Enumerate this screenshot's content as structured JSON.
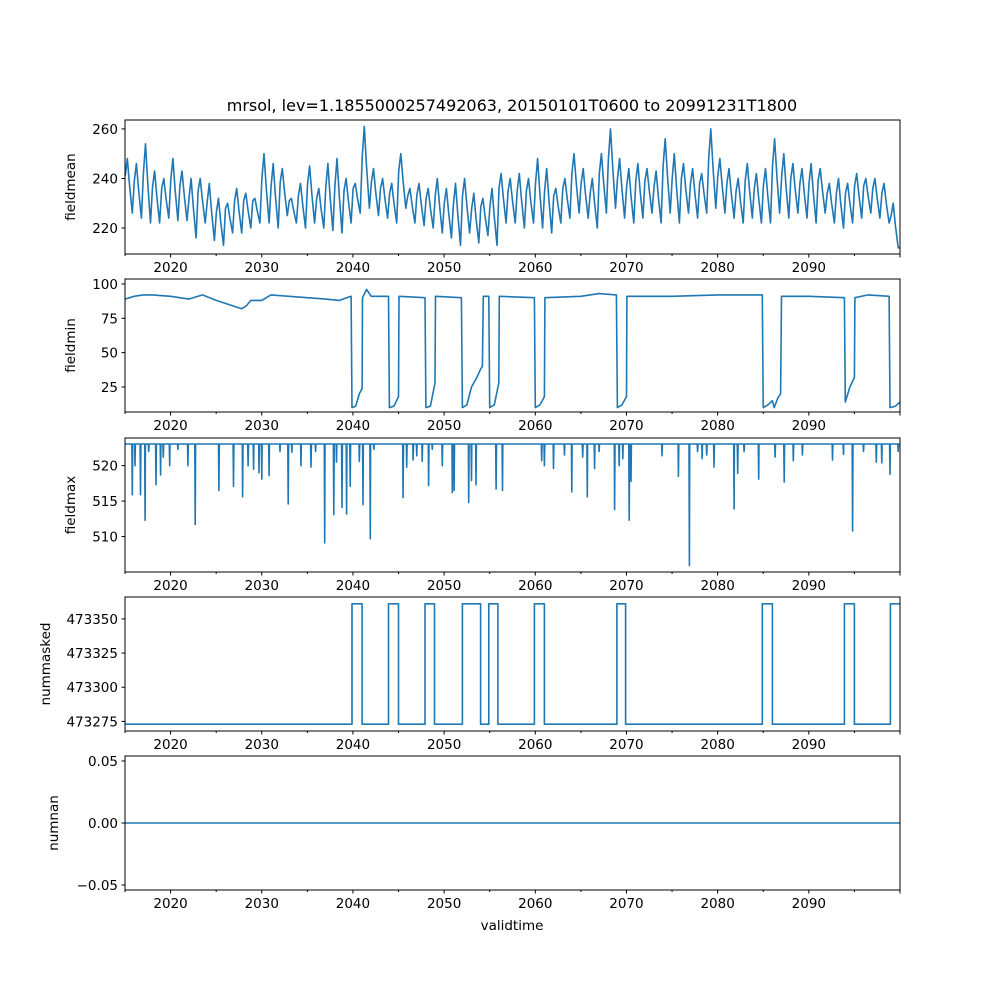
{
  "figure": {
    "title": "mrsol, lev=1.1855000257492063, 20150101T0600 to 20991231T1800",
    "xlabel": "validtime",
    "line_color": "#1f77b4"
  },
  "chart_data": [
    {
      "type": "line",
      "ylabel": "fieldmean",
      "xlim": [
        2015,
        2100
      ],
      "ylim": [
        209.5,
        263.6
      ],
      "xticks": [
        "2020",
        "2030",
        "2040",
        "2050",
        "2060",
        "2070",
        "2080",
        "2090"
      ],
      "yticks": [
        "220",
        "240",
        "260"
      ],
      "series": {
        "x_start_year": 2015,
        "annual_peaks": [
          248,
          246,
          254,
          243,
          240,
          248,
          243,
          240,
          240,
          238,
          232,
          230,
          236,
          234,
          232,
          250,
          246,
          244,
          232,
          238,
          245,
          236,
          246,
          248,
          240,
          238,
          261,
          244,
          240,
          238,
          250,
          236,
          238,
          236,
          240,
          236,
          238,
          240,
          234,
          232,
          236,
          242,
          240,
          242,
          240,
          248,
          244,
          236,
          240,
          250,
          244,
          240,
          250,
          260,
          248,
          244,
          246,
          244,
          243,
          256,
          250,
          246,
          244,
          242,
          260,
          248,
          244,
          240,
          246,
          242,
          244,
          256,
          250,
          246,
          244,
          246,
          244,
          238,
          240,
          238,
          242,
          240,
          240,
          238,
          230
        ],
        "annual_troughs": [
          226,
          224,
          222,
          222,
          224,
          223,
          223,
          216,
          222,
          215,
          213,
          218,
          218,
          220,
          222,
          222,
          220,
          225,
          222,
          220,
          222,
          220,
          219,
          218,
          222,
          226,
          228,
          225,
          224,
          222,
          228,
          222,
          221,
          220,
          218,
          216,
          213,
          218,
          214,
          217,
          213,
          222,
          222,
          220,
          222,
          220,
          218,
          222,
          224,
          226,
          224,
          220,
          226,
          228,
          224,
          222,
          224,
          226,
          222,
          226,
          222,
          226,
          224,
          226,
          228,
          226,
          224,
          222,
          224,
          222,
          222,
          226,
          224,
          226,
          224,
          222,
          226,
          222,
          220,
          222,
          224,
          226,
          224,
          222,
          212
        ]
      }
    },
    {
      "type": "line",
      "ylabel": "fieldmin",
      "xlim": [
        2015,
        2100
      ],
      "ylim": [
        6.8,
        103.6
      ],
      "xticks": [
        "2020",
        "2030",
        "2040",
        "2050",
        "2060",
        "2070",
        "2080",
        "2090"
      ],
      "yticks": [
        "25",
        "50",
        "75",
        "100"
      ],
      "points": [
        [
          2015,
          89
        ],
        [
          2016,
          91
        ],
        [
          2017,
          92
        ],
        [
          2018,
          92
        ],
        [
          2020,
          91
        ],
        [
          2022,
          89
        ],
        [
          2023.5,
          92
        ],
        [
          2025,
          88
        ],
        [
          2027.8,
          82
        ],
        [
          2028.3,
          84
        ],
        [
          2028.8,
          88
        ],
        [
          2030,
          88
        ],
        [
          2031,
          92
        ],
        [
          2033,
          91
        ],
        [
          2035,
          90
        ],
        [
          2037,
          89
        ],
        [
          2038.5,
          88
        ],
        [
          2039.8,
          91
        ],
        [
          2039.9,
          10
        ],
        [
          2040.3,
          11
        ],
        [
          2040.7,
          20
        ],
        [
          2041,
          24
        ],
        [
          2041.05,
          90
        ],
        [
          2041.5,
          96
        ],
        [
          2042,
          91
        ],
        [
          2043.9,
          91
        ],
        [
          2044,
          10
        ],
        [
          2044.5,
          11
        ],
        [
          2045,
          18
        ],
        [
          2045.05,
          91
        ],
        [
          2047.9,
          90
        ],
        [
          2048,
          10
        ],
        [
          2048.5,
          11
        ],
        [
          2049,
          28
        ],
        [
          2049.05,
          91
        ],
        [
          2051.9,
          90
        ],
        [
          2052,
          10
        ],
        [
          2052.5,
          12
        ],
        [
          2053,
          25
        ],
        [
          2053.6,
          32
        ],
        [
          2054,
          38
        ],
        [
          2054.2,
          40
        ],
        [
          2054.3,
          91
        ],
        [
          2054.9,
          91
        ],
        [
          2055,
          10
        ],
        [
          2055.5,
          12
        ],
        [
          2056,
          28
        ],
        [
          2056.05,
          91
        ],
        [
          2059.9,
          90
        ],
        [
          2060,
          10
        ],
        [
          2060.5,
          12
        ],
        [
          2061,
          18
        ],
        [
          2061.05,
          90
        ],
        [
          2065,
          91
        ],
        [
          2067,
          93
        ],
        [
          2068.9,
          92
        ],
        [
          2069,
          10
        ],
        [
          2069.5,
          12
        ],
        [
          2070,
          18
        ],
        [
          2070.05,
          91
        ],
        [
          2075,
          91
        ],
        [
          2080,
          92
        ],
        [
          2084.9,
          92
        ],
        [
          2085,
          10
        ],
        [
          2085.5,
          12
        ],
        [
          2086,
          15
        ],
        [
          2086.2,
          10
        ],
        [
          2086.6,
          17
        ],
        [
          2086.9,
          20
        ],
        [
          2087,
          91
        ],
        [
          2090,
          91
        ],
        [
          2093.9,
          90
        ],
        [
          2094,
          14
        ],
        [
          2094.5,
          25
        ],
        [
          2095,
          32
        ],
        [
          2095.05,
          90
        ],
        [
          2096.5,
          92
        ],
        [
          2098.8,
          91
        ],
        [
          2098.9,
          10
        ],
        [
          2099.5,
          11
        ],
        [
          2100,
          14
        ]
      ]
    },
    {
      "type": "line",
      "ylabel": "fieldmax",
      "xlim": [
        2015,
        2100
      ],
      "ylim": [
        505.0,
        523.9
      ],
      "xticks": [
        "2020",
        "2030",
        "2040",
        "2050",
        "2060",
        "2070",
        "2080",
        "2090"
      ],
      "yticks": [
        "510",
        "515",
        "520"
      ],
      "baseline": 523.05,
      "dips": [
        [
          2015.8,
          515.9
        ],
        [
          2016.1,
          520
        ],
        [
          2016.7,
          515.9
        ],
        [
          2017.2,
          512.3
        ],
        [
          2017.6,
          522
        ],
        [
          2018.4,
          517.3
        ],
        [
          2018.9,
          518.7
        ],
        [
          2019.2,
          521.2
        ],
        [
          2019.9,
          520
        ],
        [
          2020.8,
          522.3
        ],
        [
          2021.9,
          520
        ],
        [
          2022.7,
          511.7
        ],
        [
          2025.3,
          516.5
        ],
        [
          2026.9,
          517.1
        ],
        [
          2027.9,
          515.6
        ],
        [
          2028.5,
          520
        ],
        [
          2029.1,
          519.5
        ],
        [
          2029.7,
          519
        ],
        [
          2030.0,
          518.1
        ],
        [
          2030.8,
          518.6
        ],
        [
          2032,
          522
        ],
        [
          2032.9,
          514.6
        ],
        [
          2033.3,
          521.9
        ],
        [
          2034.3,
          520
        ],
        [
          2035.4,
          519.8
        ],
        [
          2035.9,
          522
        ],
        [
          2036.9,
          509.1
        ],
        [
          2037.9,
          513.1
        ],
        [
          2038.2,
          520.5
        ],
        [
          2038.8,
          514.1
        ],
        [
          2039.3,
          513.2
        ],
        [
          2039.7,
          517.1
        ],
        [
          2040.7,
          520.6
        ],
        [
          2041.1,
          514.5
        ],
        [
          2041.9,
          509.7
        ],
        [
          2042.3,
          522.3
        ],
        [
          2045.5,
          515.5
        ],
        [
          2045.9,
          519.8
        ],
        [
          2046.6,
          520.8
        ],
        [
          2047,
          521.4
        ],
        [
          2047.6,
          520.6
        ],
        [
          2048.3,
          517.2
        ],
        [
          2048.7,
          522.3
        ],
        [
          2049.8,
          520
        ],
        [
          2050.9,
          516.2
        ],
        [
          2051.1,
          516.5
        ],
        [
          2052.7,
          514.8
        ],
        [
          2053,
          517.9
        ],
        [
          2053.5,
          517.3
        ],
        [
          2055.7,
          516.7
        ],
        [
          2056.4,
          516.5
        ],
        [
          2060.7,
          520.7
        ],
        [
          2061,
          520
        ],
        [
          2062.0,
          519.6
        ],
        [
          2063.2,
          521.5
        ],
        [
          2064.0,
          516.3
        ],
        [
          2065.2,
          521.2
        ],
        [
          2065.7,
          515.6
        ],
        [
          2066.5,
          519.6
        ],
        [
          2067,
          522
        ],
        [
          2068.7,
          513.8
        ],
        [
          2069.2,
          520
        ],
        [
          2069.6,
          521
        ],
        [
          2070.3,
          512.3
        ],
        [
          2070.5,
          517.8
        ],
        [
          2073.9,
          521.4
        ],
        [
          2075.7,
          518.5
        ],
        [
          2076.9,
          505.9
        ],
        [
          2077.8,
          522
        ],
        [
          2078.3,
          521
        ],
        [
          2078.8,
          521.5
        ],
        [
          2079.6,
          519.8
        ],
        [
          2081.8,
          513.9
        ],
        [
          2082.2,
          518.9
        ],
        [
          2082.9,
          522
        ],
        [
          2084.5,
          518.1
        ],
        [
          2086.3,
          521.2
        ],
        [
          2087.3,
          517.7
        ],
        [
          2088.3,
          520.7
        ],
        [
          2089.3,
          521.5
        ],
        [
          2092.6,
          520.8
        ],
        [
          2093.8,
          521.6
        ],
        [
          2094.8,
          510.8
        ],
        [
          2096,
          522
        ],
        [
          2097.4,
          520.5
        ],
        [
          2098,
          520.4
        ],
        [
          2098.9,
          518.8
        ],
        [
          2099.8,
          522
        ]
      ]
    },
    {
      "type": "line",
      "ylabel": "nummasked",
      "xlim": [
        2015,
        2100
      ],
      "ylim": [
        473268,
        473366
      ],
      "xticks": [
        "2020",
        "2030",
        "2040",
        "2050",
        "2060",
        "2070",
        "2080",
        "2090"
      ],
      "yticks": [
        "473275",
        "473300",
        "473325",
        "473350"
      ],
      "low_value": 473273,
      "high_value": 473361,
      "high_intervals": [
        [
          2039.9,
          2041.0
        ],
        [
          2043.9,
          2045.0
        ],
        [
          2047.9,
          2048.95
        ],
        [
          2052.0,
          2054.0
        ],
        [
          2054.9,
          2055.9
        ],
        [
          2059.9,
          2061.0
        ],
        [
          2068.95,
          2069.9
        ],
        [
          2084.9,
          2086.0
        ],
        [
          2093.9,
          2095.0
        ],
        [
          2098.95,
          2100
        ]
      ]
    },
    {
      "type": "line",
      "ylabel": "numnan",
      "xlim": [
        2015,
        2100
      ],
      "ylim": [
        -0.054,
        0.054
      ],
      "xticks": [
        "2020",
        "2030",
        "2040",
        "2050",
        "2060",
        "2070",
        "2080",
        "2090"
      ],
      "yticks": [
        "0.05",
        "0.00",
        "−0.05"
      ],
      "ytick_values": [
        0.05,
        0.0,
        -0.05
      ],
      "constant_value": 0.0
    }
  ]
}
